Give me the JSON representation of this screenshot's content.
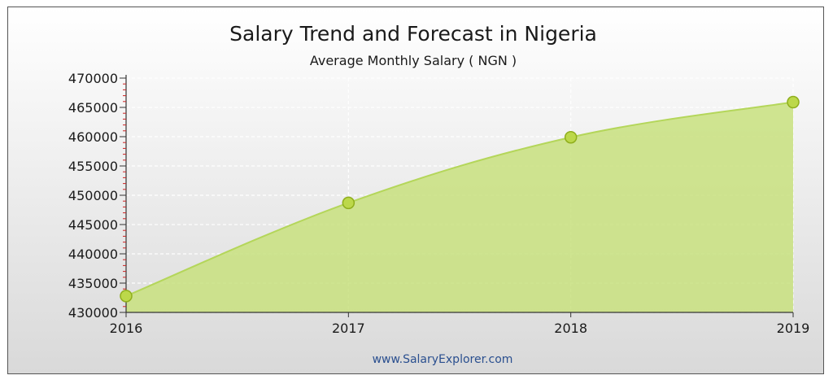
{
  "chart_data": {
    "type": "area",
    "title": "Salary Trend and Forecast in Nigeria",
    "subtitle": "Average Monthly Salary ( NGN )",
    "xlabel": "",
    "ylabel": "",
    "x": [
      "2016",
      "2017",
      "2018",
      "2019"
    ],
    "series": [
      {
        "values": [
          432800,
          448700,
          459900,
          465900
        ]
      }
    ],
    "ylim": [
      430000,
      470000
    ],
    "yticks": [
      "470000",
      "465000",
      "460000",
      "455000",
      "450000",
      "445000",
      "440000",
      "435000",
      "430000"
    ],
    "grid": true,
    "legend": "none",
    "source": "www.SalaryExplorer.com",
    "colors": {
      "fill": "#c8e07e",
      "line": "#b4d65a",
      "marker": "#bcd84a",
      "marker_stroke": "#8fae1c",
      "axis": "#333333",
      "tick": "#cc2222"
    }
  }
}
